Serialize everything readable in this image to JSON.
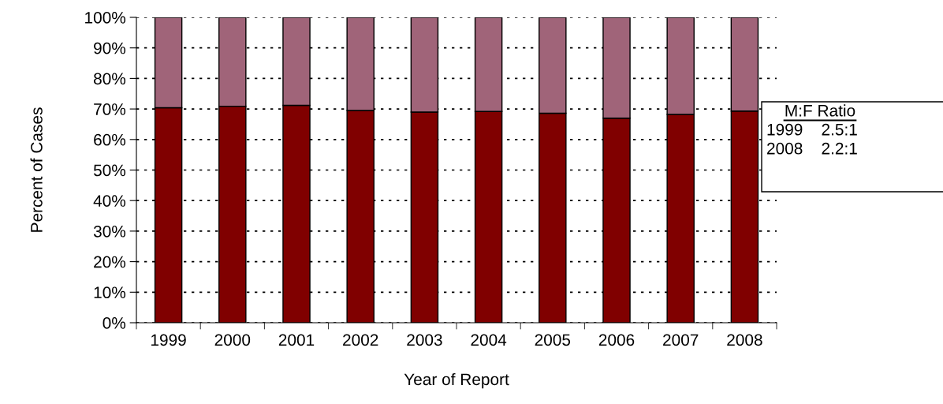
{
  "chart_data": {
    "type": "bar",
    "stacked": true,
    "categories": [
      "1999",
      "2000",
      "2001",
      "2002",
      "2003",
      "2004",
      "2005",
      "2006",
      "2007",
      "2008"
    ],
    "series": [
      {
        "color": "#800000",
        "values": [
          70.4,
          70.9,
          71.2,
          69.5,
          69.0,
          69.2,
          68.6,
          67.0,
          68.2,
          69.3
        ]
      },
      {
        "color": "#a06479",
        "values": [
          29.6,
          29.1,
          28.8,
          30.5,
          31.0,
          30.8,
          31.4,
          33.0,
          31.8,
          30.7
        ]
      }
    ],
    "xlabel": "Year of Report",
    "ylabel": "Percent of Cases",
    "ylim": [
      0,
      100
    ],
    "yticks": [
      {
        "value": 0,
        "label": "0%"
      },
      {
        "value": 10,
        "label": "10%"
      },
      {
        "value": 20,
        "label": "20%"
      },
      {
        "value": 30,
        "label": "30%"
      },
      {
        "value": 40,
        "label": "40%"
      },
      {
        "value": 50,
        "label": "50%"
      },
      {
        "value": 60,
        "label": "60%"
      },
      {
        "value": 70,
        "label": "70%"
      },
      {
        "value": 80,
        "label": "80%"
      },
      {
        "value": 90,
        "label": "90%"
      },
      {
        "value": 100,
        "label": "100%"
      }
    ],
    "grid": "y",
    "annotations": [
      "M:F Ratio",
      "1999    2.5:1",
      "2008    2.2:1"
    ]
  }
}
